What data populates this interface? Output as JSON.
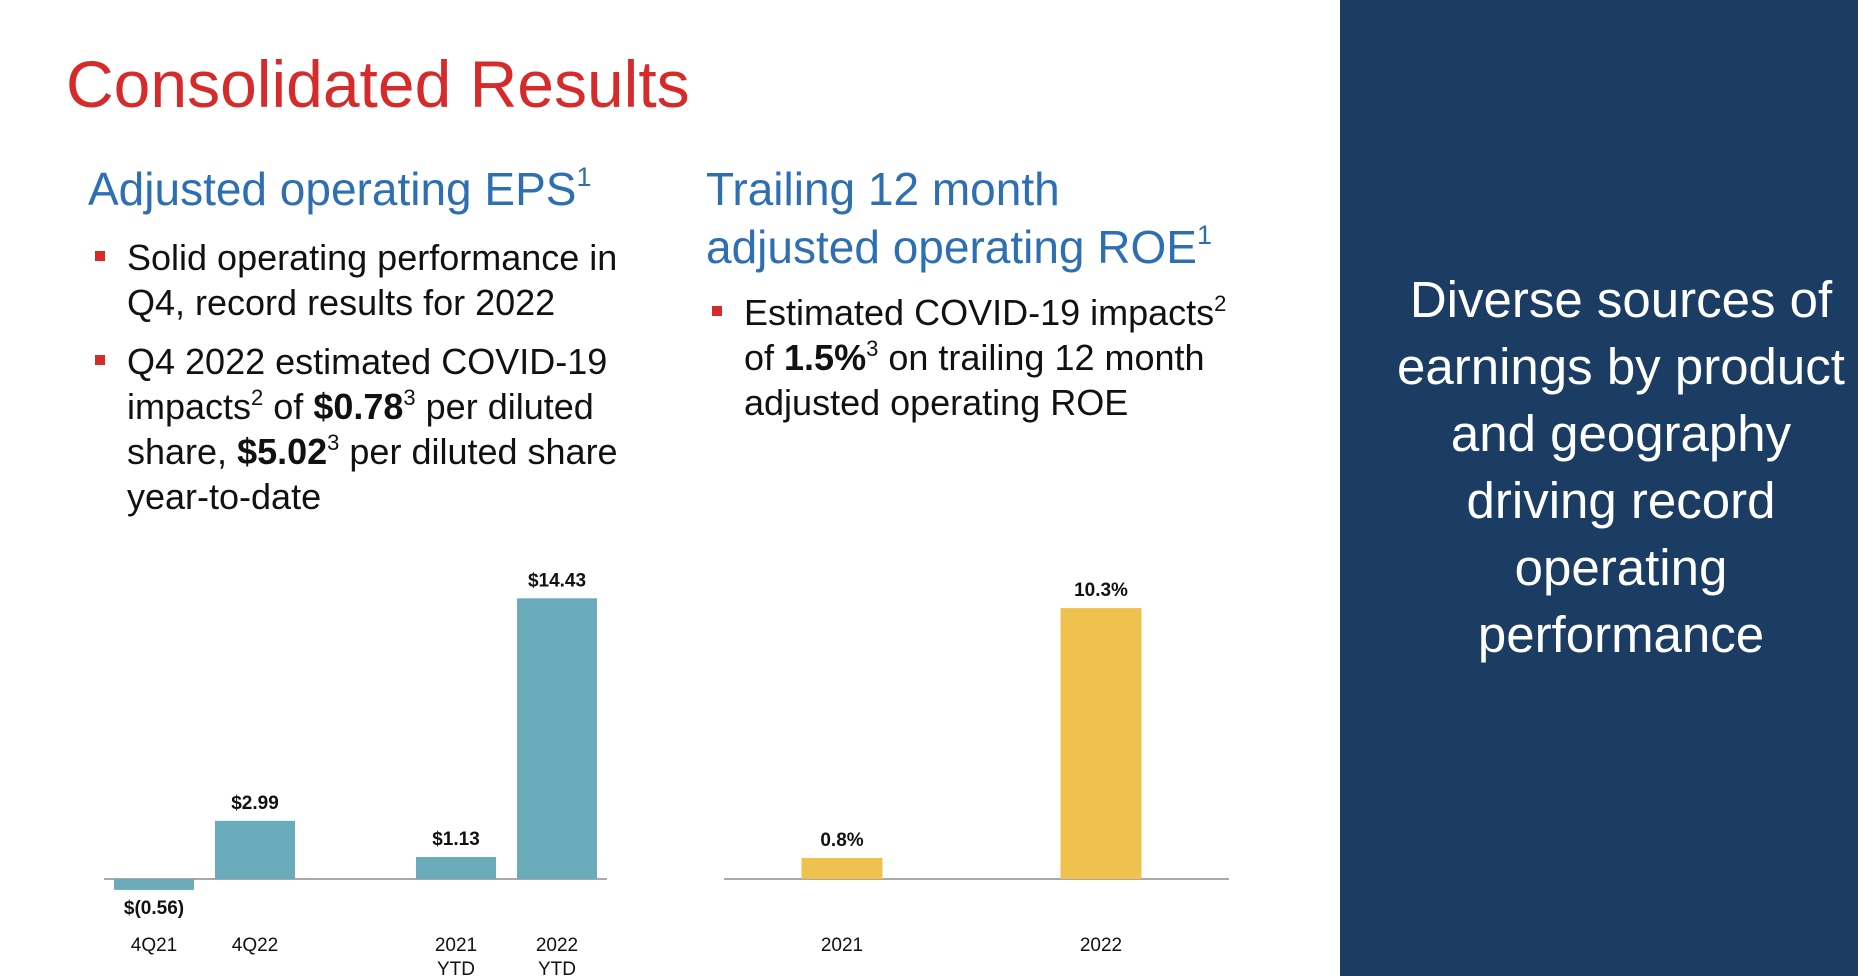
{
  "slide": {
    "title": "Consolidated Results",
    "side_message": "Diverse sources of earnings by product and geography driving record operating performance"
  },
  "eps_section": {
    "heading": "Adjusted operating EPS",
    "heading_sup": "1",
    "bullet1": "Solid operating performance in Q4, record results for 2022",
    "bullet2": {
      "t1": "Q4 2022 estimated COVID-19 impacts",
      "s1": "2",
      "t2": " of ",
      "b1": "$0.78",
      "s2": "3",
      "t3": " per diluted share, ",
      "b2": "$5.02",
      "s3": "3",
      "t4": " per diluted share year-to-date"
    }
  },
  "roe_section": {
    "heading_line1": "Trailing 12 month",
    "heading_line2": "adjusted operating ROE",
    "heading_sup": "1",
    "bullet1": {
      "t1": "Estimated COVID-19 impacts",
      "s1": "2",
      "t2": " of ",
      "b1": "1.5%",
      "s2": "3",
      "t3": " on trailing 12 month adjusted operating ROE"
    }
  },
  "colors": {
    "title": "#d52b2b",
    "heading": "#2e6fb4",
    "eps_bar": "#69abbb",
    "roe_bar": "#efc14f",
    "panel": "#1b3c63"
  },
  "chart_data": [
    {
      "type": "bar",
      "categories": [
        "4Q21",
        "4Q22",
        "2021\nYTD",
        "2022\nYTD"
      ],
      "values": [
        -0.56,
        2.99,
        1.13,
        14.43
      ],
      "value_labels": [
        "$(0.56)",
        "$2.99",
        "$1.13",
        "$14.43"
      ],
      "color": "#69abbb",
      "grid": false
    },
    {
      "type": "bar",
      "categories": [
        "2021",
        "2022"
      ],
      "values": [
        0.8,
        10.3
      ],
      "value_labels": [
        "0.8%",
        "10.3%"
      ],
      "color": "#efc14f",
      "grid": false
    }
  ]
}
